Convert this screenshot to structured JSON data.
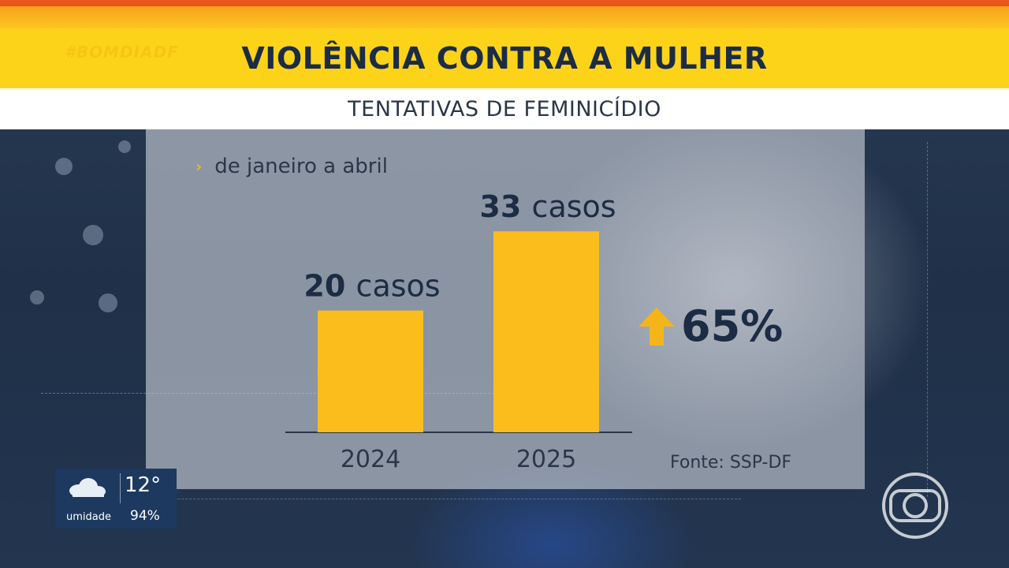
{
  "header": {
    "hashtag": "#BOMDIADF",
    "title": "VIOLÊNCIA CONTRA A MULHER",
    "subtitle": "TENTATIVAS DE FEMINICÍDIO"
  },
  "colors": {
    "title_bar": "#fdd31a",
    "bar": "#fbbd1c",
    "text_dark": "#1b2c44",
    "arrow": "#f5b51a"
  },
  "chart_data": {
    "type": "bar",
    "period_label": "de janeiro a abril",
    "categories": [
      "2024",
      "2025"
    ],
    "values": [
      20,
      33
    ],
    "data_labels": [
      "20 casos",
      "33 casos"
    ],
    "change": {
      "direction": "up",
      "label": "65%"
    },
    "source": "Fonte: SSP-DF"
  },
  "weather": {
    "icon": "cloud-icon",
    "temperature": "12°",
    "humidity_label": "umidade",
    "humidity_value": "94%"
  },
  "logo": {
    "icon": "globo-logo-icon"
  }
}
